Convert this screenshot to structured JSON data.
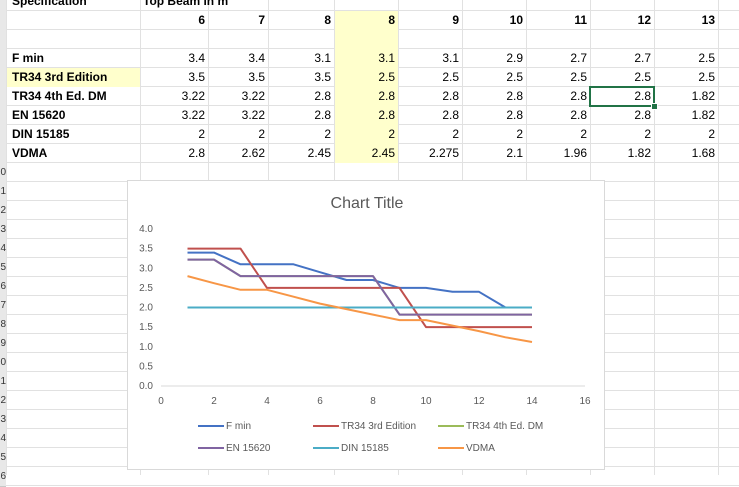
{
  "sheet": {
    "header_a": "Specification",
    "header_b": "Top Beam in m",
    "columns": [
      "6",
      "7",
      "8",
      "8",
      "9",
      "10",
      "11",
      "12",
      "13"
    ],
    "row_numbers": [
      "",
      "",
      "",
      "",
      "",
      "",
      "",
      "",
      "",
      "0",
      "1",
      "2",
      "3",
      "4",
      "5",
      "6",
      "7",
      "8",
      "9",
      "0",
      "1",
      "2",
      "3",
      "4",
      "5",
      "6"
    ],
    "rows": [
      {
        "label": "F min",
        "values": [
          "3.4",
          "3.4",
          "3.1",
          "3.1",
          "3.1",
          "2.9",
          "2.7",
          "2.7",
          "2.5"
        ],
        "highlight_label": false
      },
      {
        "label": "TR34 3rd Edition",
        "values": [
          "3.5",
          "3.5",
          "3.5",
          "2.5",
          "2.5",
          "2.5",
          "2.5",
          "2.5",
          "2.5"
        ],
        "highlight_label": true
      },
      {
        "label": "TR34 4th Ed. DM",
        "values": [
          "3.22",
          "3.22",
          "2.8",
          "2.8",
          "2.8",
          "2.8",
          "2.8",
          "2.8",
          "1.82"
        ],
        "highlight_label": false
      },
      {
        "label": "EN 15620",
        "values": [
          "3.22",
          "3.22",
          "2.8",
          "2.8",
          "2.8",
          "2.8",
          "2.8",
          "2.8",
          "1.82"
        ],
        "highlight_label": false
      },
      {
        "label": "DIN 15185",
        "values": [
          "2",
          "2",
          "2",
          "2",
          "2",
          "2",
          "2",
          "2",
          "2"
        ],
        "highlight_label": false
      },
      {
        "label": "VDMA",
        "values": [
          "2.8",
          "2.62",
          "2.45",
          "2.45",
          "2.275",
          "2.1",
          "1.96",
          "1.82",
          "1.68"
        ],
        "highlight_label": false
      }
    ]
  },
  "chart_data": {
    "type": "line",
    "title": "Chart Title",
    "xlabel": "",
    "ylabel": "",
    "xlim": [
      0,
      16
    ],
    "ylim": [
      0,
      4.0
    ],
    "x_ticks": [
      "0",
      "2",
      "4",
      "6",
      "8",
      "10",
      "12",
      "14",
      "16"
    ],
    "y_ticks": [
      "0.0",
      "0.5",
      "1.0",
      "1.5",
      "2.0",
      "2.5",
      "3.0",
      "3.5",
      "4.0"
    ],
    "grid": false,
    "legend_position": "bottom",
    "x": [
      1,
      2,
      3,
      4,
      5,
      6,
      7,
      8,
      9,
      10,
      11,
      12,
      13,
      14
    ],
    "series": [
      {
        "name": "F min",
        "color": "#4472c4",
        "values": [
          3.4,
          3.4,
          3.1,
          3.1,
          3.1,
          2.9,
          2.7,
          2.7,
          2.5,
          2.5,
          2.4,
          2.4,
          2.0,
          2.0
        ]
      },
      {
        "name": "TR34 3rd Edition",
        "color": "#c0504d",
        "values": [
          3.5,
          3.5,
          3.5,
          2.5,
          2.5,
          2.5,
          2.5,
          2.5,
          2.5,
          1.5,
          1.5,
          1.5,
          1.5,
          1.5
        ]
      },
      {
        "name": "TR34 4th Ed. DM",
        "color": "#9bbb59",
        "values": [
          3.22,
          3.22,
          2.8,
          2.8,
          2.8,
          2.8,
          2.8,
          2.8,
          1.82,
          1.82,
          1.82,
          1.82,
          1.82,
          1.82
        ]
      },
      {
        "name": "EN 15620",
        "color": "#8064a2",
        "values": [
          3.22,
          3.22,
          2.8,
          2.8,
          2.8,
          2.8,
          2.8,
          2.8,
          1.82,
          1.82,
          1.82,
          1.82,
          1.82,
          1.82
        ]
      },
      {
        "name": "DIN 15185",
        "color": "#4bacc6",
        "values": [
          2,
          2,
          2,
          2,
          2,
          2,
          2,
          2,
          2,
          2,
          2,
          2,
          2,
          2
        ]
      },
      {
        "name": "VDMA",
        "color": "#f79646",
        "values": [
          2.8,
          2.62,
          2.45,
          2.45,
          2.275,
          2.1,
          1.96,
          1.82,
          1.68,
          1.68,
          1.54,
          1.4,
          1.24,
          1.12
        ]
      }
    ]
  }
}
